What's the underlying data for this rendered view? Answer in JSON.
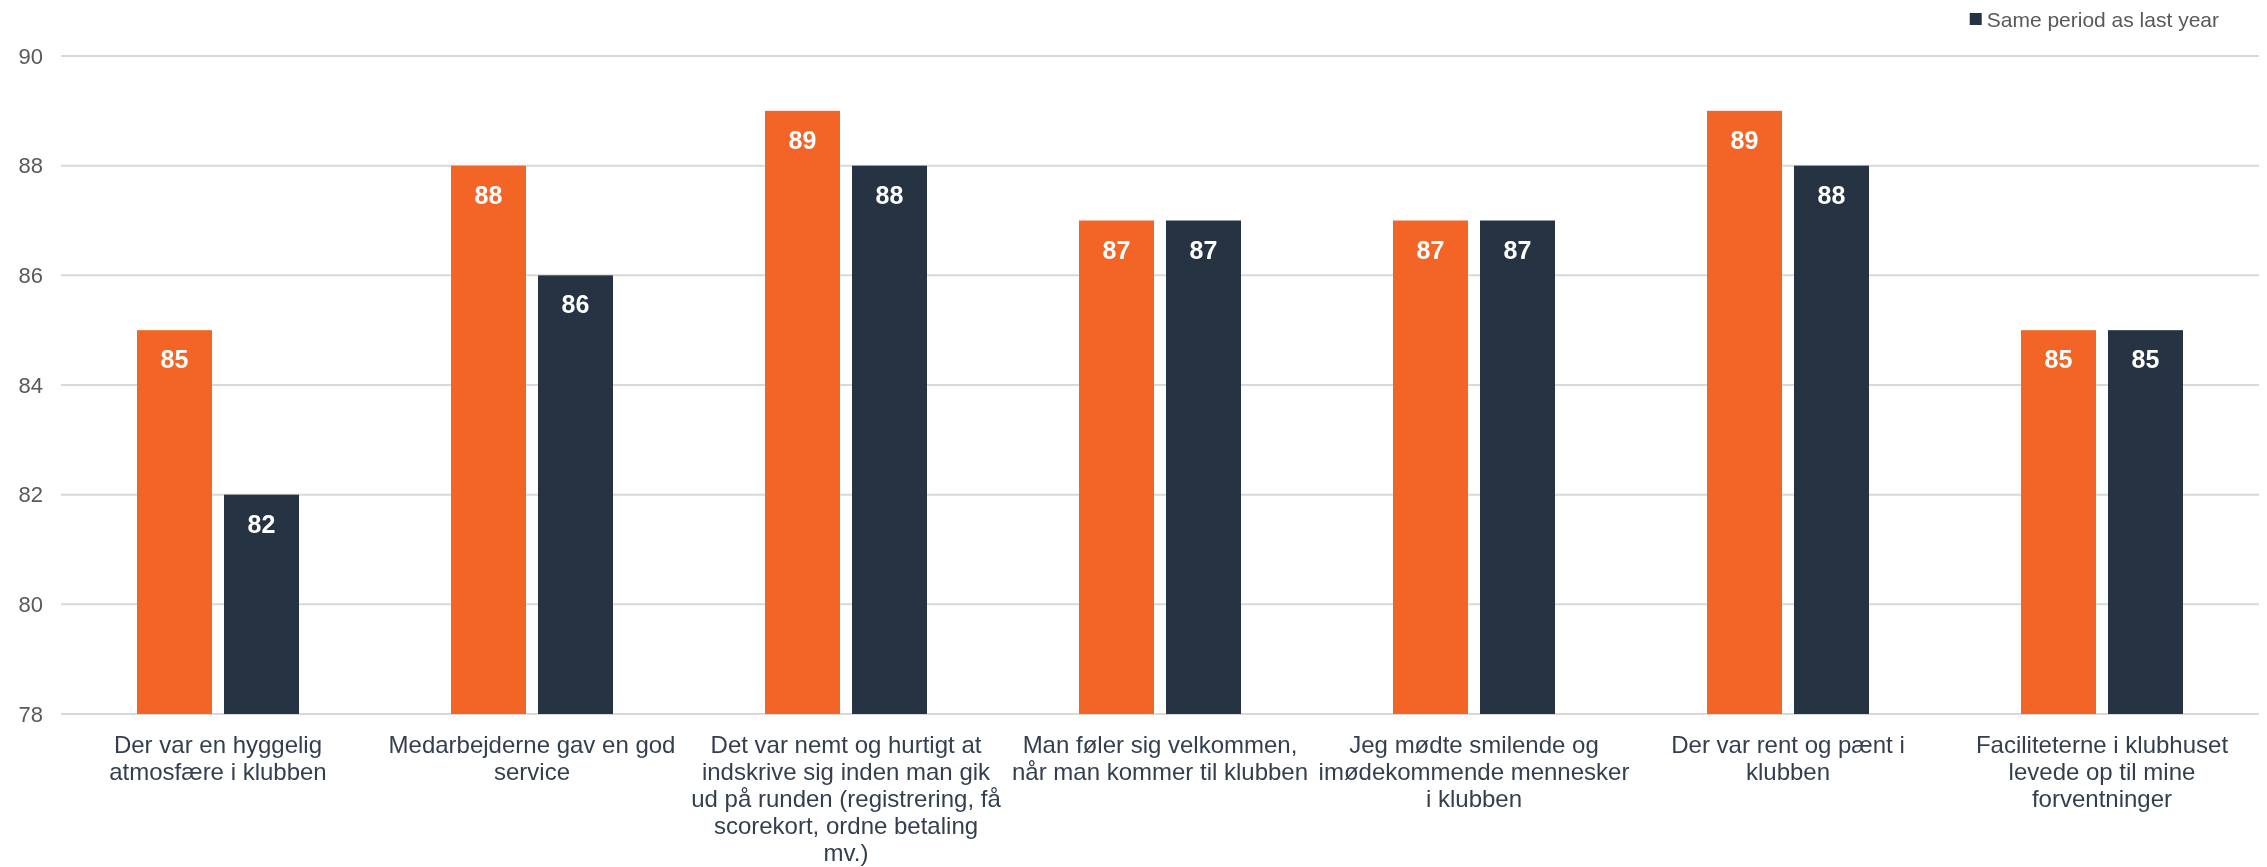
{
  "chart_data": {
    "type": "bar",
    "categories": [
      "Der var en hyggelig atmosfære i klubben",
      "Medarbejderne gav en god service",
      "Det var nemt og hurtigt at indskrive sig inden man gik ud på runden (registrering, få scorekort, ordne betaling mv.)",
      "Man føler sig velkommen, når man kommer til klubben",
      "Jeg mødte smilende og imødekommende mennesker i klubben",
      "Der var rent og pænt i klubben",
      "Faciliteterne i klubhuset levede op til mine forventninger"
    ],
    "series": [
      {
        "color": "#f26527",
        "values": [
          85,
          88,
          89,
          87,
          87,
          89,
          85
        ]
      },
      {
        "name": "Same period as last year",
        "color": "#263343",
        "values": [
          82,
          86,
          88,
          87,
          87,
          88,
          85
        ]
      }
    ],
    "ylim": [
      78,
      90
    ],
    "yticks": [
      78,
      80,
      82,
      84,
      86,
      88,
      90
    ],
    "grid": "y",
    "legend": "top right",
    "data_labels": true
  }
}
